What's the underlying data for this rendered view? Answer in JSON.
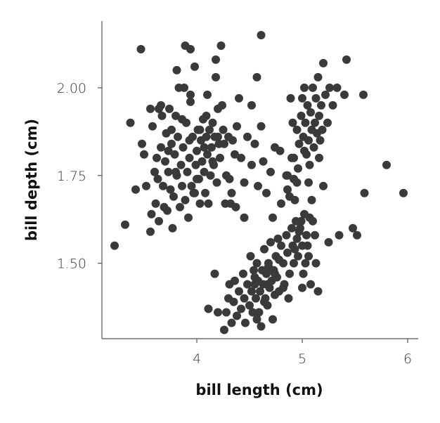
{
  "chart_data": {
    "type": "scatter",
    "xlabel": "bill length (cm)",
    "ylabel": "bill depth (cm)",
    "xlim": [
      3.1,
      6.1
    ],
    "ylim": [
      1.285,
      2.19
    ],
    "xticks": [
      4,
      5,
      6
    ],
    "xtick_labels": [
      "4",
      "5",
      "6"
    ],
    "yticks": [
      1.5,
      1.75,
      2.0
    ],
    "ytick_labels": [
      "1.50",
      "1.75",
      "2.00"
    ],
    "grid": false,
    "point_color": "#3a3a3a",
    "series": [
      {
        "points": [
          [
            3.22,
            1.55
          ],
          [
            3.32,
            1.61
          ],
          [
            3.37,
            1.9
          ],
          [
            3.42,
            1.71
          ],
          [
            3.47,
            2.11
          ],
          [
            3.48,
            1.84
          ],
          [
            3.5,
            1.81
          ],
          [
            3.52,
            1.72
          ],
          [
            3.56,
            1.59
          ],
          [
            3.57,
            1.64
          ],
          [
            3.56,
            1.94
          ],
          [
            3.58,
            1.89
          ],
          [
            3.6,
            1.76
          ],
          [
            3.61,
            1.67
          ],
          [
            3.62,
            1.8
          ],
          [
            3.63,
            1.74
          ],
          [
            3.64,
            1.62
          ],
          [
            3.66,
            1.83
          ],
          [
            3.66,
            1.95
          ],
          [
            3.67,
            1.92
          ],
          [
            3.68,
            1.72
          ],
          [
            3.69,
            1.66
          ],
          [
            3.7,
            1.79
          ],
          [
            3.71,
            1.87
          ],
          [
            3.72,
            1.65
          ],
          [
            3.73,
            1.76
          ],
          [
            3.74,
            1.94
          ],
          [
            3.75,
            1.71
          ],
          [
            3.76,
            1.84
          ],
          [
            3.77,
            1.6
          ],
          [
            3.78,
            1.69
          ],
          [
            3.79,
            1.81
          ],
          [
            3.8,
            1.92
          ],
          [
            3.81,
            1.75
          ],
          [
            3.81,
            2.05
          ],
          [
            3.82,
            1.86
          ],
          [
            3.83,
            2.0
          ],
          [
            3.84,
            1.66
          ],
          [
            3.85,
            1.78
          ],
          [
            3.86,
            1.72
          ],
          [
            3.87,
            1.83
          ],
          [
            3.88,
            2.0
          ],
          [
            3.89,
            1.68
          ],
          [
            3.89,
            2.12
          ],
          [
            3.9,
            1.9
          ],
          [
            3.91,
            1.76
          ],
          [
            3.92,
            1.63
          ],
          [
            3.93,
            1.8
          ],
          [
            3.94,
            2.11
          ],
          [
            3.94,
            1.96
          ],
          [
            3.95,
            1.72
          ],
          [
            3.96,
            1.86
          ],
          [
            3.97,
            1.7
          ],
          [
            3.98,
            2.06
          ],
          [
            3.99,
            1.78
          ],
          [
            4.0,
            1.82
          ],
          [
            4.01,
            1.88
          ],
          [
            4.02,
            1.74
          ],
          [
            4.03,
            1.67
          ],
          [
            4.04,
            1.85
          ],
          [
            4.05,
            1.79
          ],
          [
            4.06,
            1.91
          ],
          [
            4.07,
            1.76
          ],
          [
            4.08,
            1.7
          ],
          [
            4.09,
            1.86
          ],
          [
            4.1,
            1.81
          ],
          [
            4.1,
            1.98
          ],
          [
            4.11,
            1.67
          ],
          [
            4.12,
            1.88
          ],
          [
            4.13,
            1.75
          ],
          [
            4.14,
            1.83
          ],
          [
            4.15,
            1.9
          ],
          [
            4.16,
            1.78
          ],
          [
            4.17,
            1.86
          ],
          [
            4.18,
            2.03
          ],
          [
            4.19,
            1.73
          ],
          [
            4.2,
            1.94
          ],
          [
            4.21,
            1.84
          ],
          [
            4.22,
            1.8
          ],
          [
            4.23,
            2.12
          ],
          [
            4.24,
            1.95
          ],
          [
            4.25,
            1.88
          ],
          [
            4.26,
            1.84
          ],
          [
            4.27,
            1.67
          ],
          [
            4.28,
            1.75
          ],
          [
            4.3,
            1.86
          ],
          [
            4.31,
            1.74
          ],
          [
            4.33,
            1.7
          ],
          [
            4.34,
            1.85
          ],
          [
            4.36,
            1.81
          ],
          [
            4.38,
            1.89
          ],
          [
            4.4,
            1.97
          ],
          [
            4.42,
            1.8
          ],
          [
            4.45,
            1.73
          ],
          [
            4.48,
            1.86
          ],
          [
            4.52,
            1.78
          ],
          [
            4.55,
            1.84
          ],
          [
            4.58,
            1.72
          ],
          [
            4.61,
            1.89
          ],
          [
            4.63,
            1.79
          ],
          [
            4.66,
            1.7
          ],
          [
            4.7,
            1.76
          ],
          [
            4.74,
            1.83
          ],
          [
            4.79,
            1.82
          ],
          [
            4.85,
            1.75
          ],
          [
            4.9,
            1.8
          ],
          [
            4.95,
            1.73
          ],
          [
            4.32,
            1.67
          ],
          [
            4.37,
            1.66
          ],
          [
            4.45,
            1.63
          ],
          [
            4.52,
            1.95
          ],
          [
            4.57,
            2.03
          ],
          [
            4.61,
            2.15
          ],
          [
            4.18,
            2.08
          ],
          [
            3.94,
            1.98
          ],
          [
            3.64,
            1.94
          ],
          [
            3.8,
            1.76
          ],
          [
            4.07,
            1.83
          ],
          [
            3.98,
            1.7
          ],
          [
            4.03,
            1.88
          ],
          [
            4.09,
            1.92
          ],
          [
            3.73,
            1.82
          ],
          [
            3.86,
            1.91
          ],
          [
            4.15,
            1.79
          ],
          [
            4.2,
            1.86
          ],
          [
            3.93,
            1.85
          ],
          [
            4.0,
            1.74
          ],
          [
            3.76,
            1.88
          ],
          [
            4.26,
            1.31
          ],
          [
            4.28,
            1.36
          ],
          [
            4.3,
            1.4
          ],
          [
            4.31,
            1.44
          ],
          [
            4.33,
            1.33
          ],
          [
            4.35,
            1.39
          ],
          [
            4.36,
            1.45
          ],
          [
            4.38,
            1.35
          ],
          [
            4.4,
            1.42
          ],
          [
            4.42,
            1.37
          ],
          [
            4.44,
            1.47
          ],
          [
            4.45,
            1.4
          ],
          [
            4.46,
            1.33
          ],
          [
            4.48,
            1.44
          ],
          [
            4.5,
            1.38
          ],
          [
            4.51,
            1.52
          ],
          [
            4.52,
            1.42
          ],
          [
            4.53,
            1.36
          ],
          [
            4.54,
            1.48
          ],
          [
            4.55,
            1.44
          ],
          [
            4.56,
            1.4
          ],
          [
            4.57,
            1.5
          ],
          [
            4.58,
            1.45
          ],
          [
            4.59,
            1.36
          ],
          [
            4.6,
            1.42
          ],
          [
            4.61,
            1.32
          ],
          [
            4.62,
            1.48
          ],
          [
            4.63,
            1.44
          ],
          [
            4.64,
            1.54
          ],
          [
            4.65,
            1.4
          ],
          [
            4.66,
            1.47
          ],
          [
            4.67,
            1.38
          ],
          [
            4.68,
            1.5
          ],
          [
            4.69,
            1.43
          ],
          [
            4.7,
            1.56
          ],
          [
            4.71,
            1.45
          ],
          [
            4.72,
            1.34
          ],
          [
            4.73,
            1.48
          ],
          [
            4.74,
            1.41
          ],
          [
            4.75,
            1.52
          ],
          [
            4.76,
            1.46
          ],
          [
            4.78,
            1.42
          ],
          [
            4.8,
            1.55
          ],
          [
            4.82,
            1.5
          ],
          [
            4.83,
            1.44
          ],
          [
            4.85,
            1.58
          ],
          [
            4.86,
            1.53
          ],
          [
            4.88,
            1.47
          ],
          [
            4.9,
            1.6
          ],
          [
            4.91,
            1.55
          ],
          [
            4.92,
            1.5
          ],
          [
            4.94,
            1.62
          ],
          [
            4.95,
            1.57
          ],
          [
            4.96,
            1.52
          ],
          [
            4.98,
            1.6
          ],
          [
            5.0,
            1.55
          ],
          [
            5.02,
            1.64
          ],
          [
            5.03,
            1.5
          ],
          [
            5.04,
            1.58
          ],
          [
            5.06,
            1.52
          ],
          [
            5.08,
            1.44
          ],
          [
            5.1,
            1.62
          ],
          [
            5.12,
            1.58
          ],
          [
            5.15,
            1.42
          ],
          [
            4.2,
            1.36
          ],
          [
            4.11,
            1.37
          ],
          [
            4.17,
            1.47
          ],
          [
            4.57,
            1.34
          ],
          [
            4.64,
            1.39
          ],
          [
            4.68,
            1.49
          ],
          [
            4.82,
            1.43
          ],
          [
            4.87,
            1.4
          ],
          [
            4.74,
            1.47
          ],
          [
            4.67,
            1.44
          ],
          [
            4.55,
            1.46
          ],
          [
            4.78,
            1.51
          ],
          [
            4.93,
            1.54
          ],
          [
            4.97,
            1.59
          ],
          [
            5.01,
            1.47
          ],
          [
            5.07,
            1.63
          ],
          [
            4.99,
            1.62
          ],
          [
            4.77,
            1.57
          ],
          [
            4.72,
            1.63
          ],
          [
            4.8,
            1.67
          ],
          [
            4.86,
            1.71
          ],
          [
            4.92,
            1.74
          ],
          [
            5.0,
            1.43
          ],
          [
            5.13,
            1.5
          ],
          [
            4.86,
            1.75
          ],
          [
            4.92,
            1.8
          ],
          [
            4.95,
            1.88
          ],
          [
            4.97,
            1.84
          ],
          [
            4.99,
            1.92
          ],
          [
            5.0,
            1.97
          ],
          [
            5.01,
            1.86
          ],
          [
            5.02,
            2.0
          ],
          [
            5.03,
            1.9
          ],
          [
            5.04,
            1.81
          ],
          [
            5.05,
            1.95
          ],
          [
            5.06,
            1.85
          ],
          [
            5.07,
            1.78
          ],
          [
            5.08,
            1.93
          ],
          [
            5.09,
            1.88
          ],
          [
            5.1,
            2.0
          ],
          [
            5.11,
            1.83
          ],
          [
            5.12,
            1.9
          ],
          [
            5.13,
            1.97
          ],
          [
            5.14,
            1.87
          ],
          [
            5.15,
            2.03
          ],
          [
            5.16,
            1.92
          ],
          [
            5.17,
            1.85
          ],
          [
            5.18,
            1.95
          ],
          [
            5.19,
            1.88
          ],
          [
            5.2,
            2.07
          ],
          [
            5.22,
            1.98
          ],
          [
            5.24,
            1.9
          ],
          [
            5.26,
            2.0
          ],
          [
            5.29,
            1.95
          ],
          [
            5.33,
            2.0
          ],
          [
            5.4,
            1.98
          ],
          [
            5.42,
            2.08
          ],
          [
            5.52,
            1.58
          ],
          [
            5.58,
            1.98
          ],
          [
            5.59,
            1.7
          ],
          [
            5.8,
            1.78
          ],
          [
            5.96,
            1.7
          ],
          [
            4.91,
            1.9
          ],
          [
            4.89,
            1.97
          ],
          [
            5.06,
            1.73
          ],
          [
            5.09,
            1.68
          ],
          [
            5.2,
            1.72
          ],
          [
            5.25,
            1.56
          ],
          [
            5.35,
            1.58
          ],
          [
            5.48,
            1.6
          ],
          [
            4.99,
            1.62
          ],
          [
            5.05,
            1.55
          ],
          [
            4.93,
            1.68
          ],
          [
            5.16,
            1.8
          ],
          [
            4.88,
            1.69
          ],
          [
            4.96,
            1.77
          ],
          [
            5.02,
            1.82
          ]
        ]
      }
    ]
  }
}
